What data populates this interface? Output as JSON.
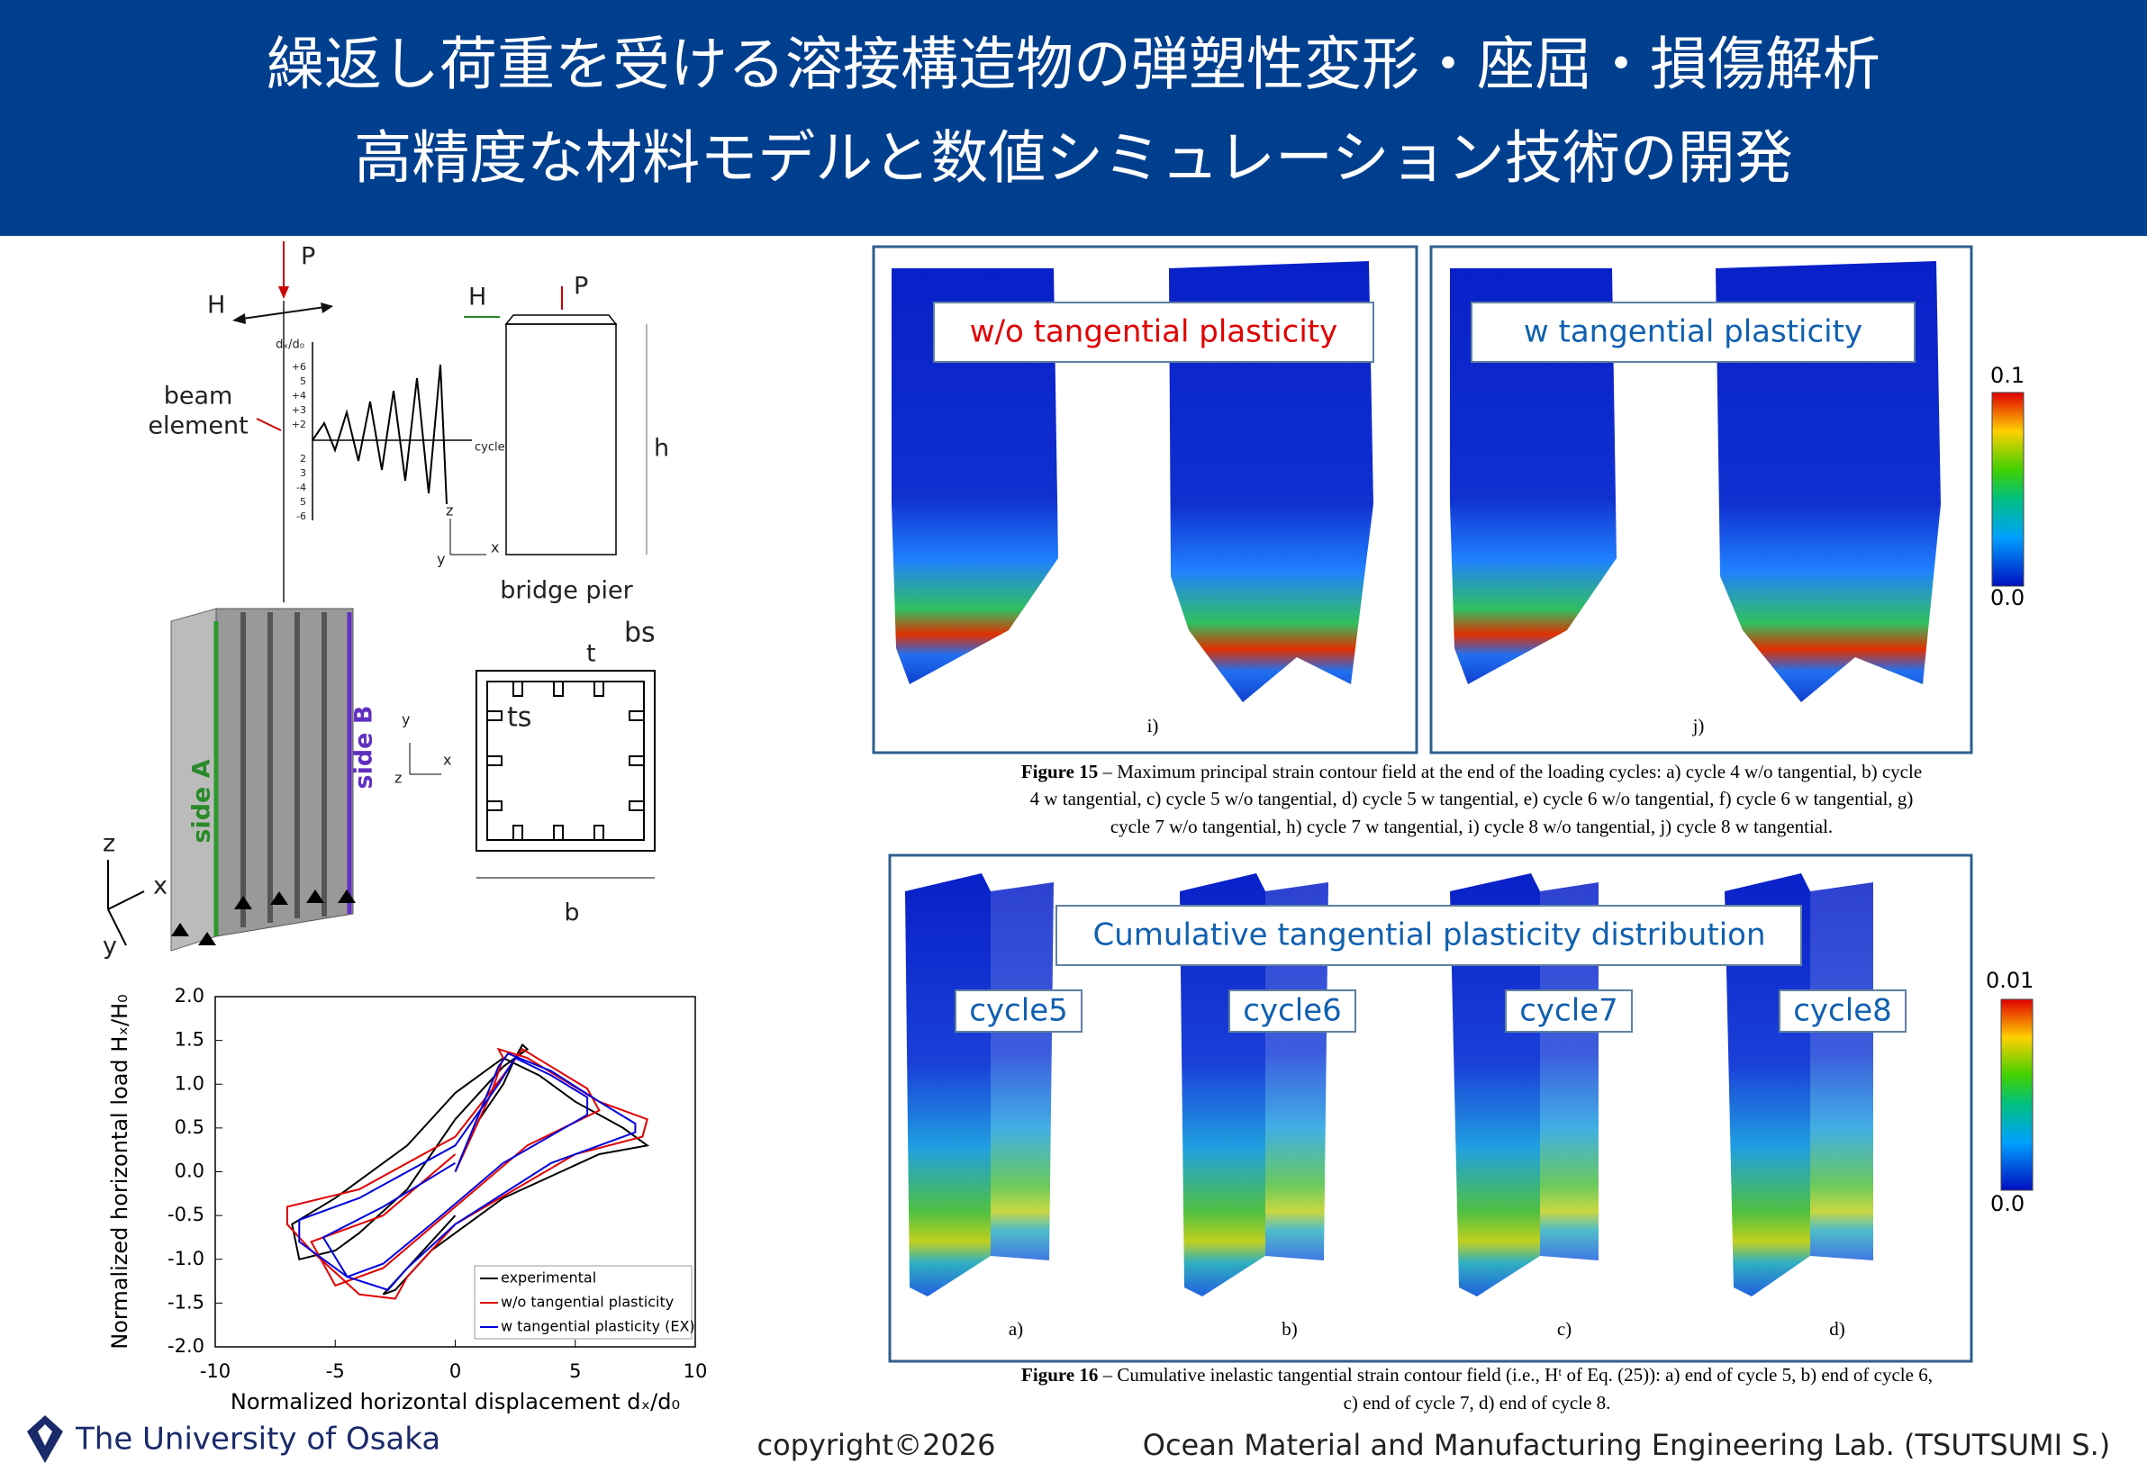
{
  "header": {
    "title_lines": [
      "繰返し荷重を受ける溶接構造物の弾塑性変形・座屈・損傷解析",
      "高精度な材料モデルと数値シミュレーション技術の開発"
    ]
  },
  "diagram": {
    "load_P": "P",
    "load_H": "H",
    "beam_element_lines": [
      "beam",
      "element"
    ],
    "cyclic_axis_label": "dₓ/d₀",
    "cyclic_ticks": [
      "+6",
      "5",
      "+4",
      "+3",
      "+2",
      "2",
      "3",
      "-4",
      "5",
      "-6"
    ],
    "cycle_label": "cycle",
    "pier_H": "H",
    "pier_P": "P",
    "height": "h",
    "bridge_pier": "bridge pier",
    "axis_z": "z",
    "axis_y": "y",
    "axis_x": "x",
    "side_a": "side A",
    "side_b": "side B",
    "section_t": "t",
    "section_bs": "bs",
    "section_ts": "ts",
    "section_b": "b"
  },
  "chart": {
    "type": "line",
    "ylabel": "Normalized horizontal load Hₓ/H₀",
    "xlabel": "Normalized horizontal displacement dₓ/d₀",
    "xlim": [
      -10,
      10
    ],
    "ylim": [
      -2,
      2
    ],
    "xticks": [
      -10,
      -5,
      0,
      5,
      10
    ],
    "yticks": [
      {
        "value": 2,
        "label": "2.0"
      },
      {
        "value": 1.5,
        "label": "1.5"
      },
      {
        "value": 1,
        "label": "1.0"
      },
      {
        "value": 0.5,
        "label": "0.5"
      },
      {
        "value": 0,
        "label": "0.0"
      },
      {
        "value": -0.5,
        "label": "-0.5"
      },
      {
        "value": -1,
        "label": "-1.0"
      },
      {
        "value": -1.5,
        "label": "-1.5"
      },
      {
        "value": -2,
        "label": "-2.0"
      }
    ],
    "series": [
      {
        "name": "experimental",
        "color": "#000000",
        "x": [
          0,
          1,
          2,
          2.5,
          2.8,
          3,
          2,
          0,
          -2,
          -4,
          -5,
          -6.5,
          -6.8,
          -5,
          -2,
          0,
          2,
          3.5,
          5,
          7,
          8,
          6,
          2,
          -1,
          -2.5,
          -3,
          -2,
          0
        ],
        "y": [
          0,
          0.6,
          1,
          1.3,
          1.45,
          1.4,
          1.2,
          0.6,
          -0.2,
          -0.7,
          -0.9,
          -1,
          -0.6,
          -0.3,
          0.3,
          0.9,
          1.3,
          1.1,
          0.8,
          0.5,
          0.3,
          0.2,
          -0.3,
          -0.9,
          -1.35,
          -1.4,
          -1.1,
          -0.5
        ]
      },
      {
        "name": "w/o tangential plasticity",
        "color": "#e00000",
        "x": [
          0,
          1.5,
          2,
          1.8,
          3,
          6,
          8,
          7.8,
          5,
          0,
          -2,
          -2.5,
          -4,
          -6,
          -7,
          -7,
          -4,
          0,
          2,
          2.8,
          4,
          5.5,
          6,
          3,
          0,
          -3,
          -5,
          -6,
          -3,
          0
        ],
        "y": [
          0,
          0.9,
          1.3,
          1.4,
          1.3,
          0.8,
          0.6,
          0.4,
          0.2,
          -0.6,
          -1.2,
          -1.45,
          -1.4,
          -0.9,
          -0.6,
          -0.4,
          -0.2,
          0.4,
          1.1,
          1.4,
          1.2,
          0.95,
          0.7,
          0.3,
          -0.4,
          -1.1,
          -1.3,
          -0.8,
          -0.5,
          0.2
        ]
      },
      {
        "name": "w tangential plasticity (EX)",
        "color": "#0000dd",
        "x": [
          0,
          1.2,
          1.8,
          2.2,
          4,
          6,
          7.5,
          7.5,
          4,
          0,
          -2,
          -2.8,
          -4.5,
          -6.5,
          -6.5,
          -4,
          0,
          1.8,
          2.5,
          4,
          5.5,
          5.5,
          2,
          -1,
          -3,
          -4.5,
          -5.5,
          -3,
          0
        ],
        "y": [
          0,
          0.8,
          1.2,
          1.35,
          1.15,
          0.8,
          0.55,
          0.45,
          0.1,
          -0.6,
          -1.1,
          -1.35,
          -1.2,
          -0.8,
          -0.55,
          -0.3,
          0.3,
          1,
          1.3,
          1.1,
          0.85,
          0.65,
          0.1,
          -0.6,
          -1.05,
          -1.2,
          -0.75,
          -0.4,
          0.1
        ]
      }
    ]
  },
  "figure15": {
    "panel_labels": [
      "w/o tangential plasticity",
      "w tangential plasticity"
    ],
    "subfigure_labels": [
      "i)",
      "j)"
    ],
    "colorbar_labels": [
      "0.1",
      "0.0"
    ],
    "caption_label": "Figure 15",
    "caption_lines": [
      "– Maximum principal strain contour field at the end of the loading cycles: a) cycle 4 w/o tangential, b) cycle",
      "4 w tangential, c) cycle 5 w/o tangential, d) cycle 5 w tangential, e) cycle 6 w/o tangential, f) cycle 6 w tangential, g)",
      "cycle 7 w/o tangential, h) cycle 7 w tangential, i) cycle 8 w/o tangential, j) cycle 8 w tangential."
    ]
  },
  "figure16": {
    "panel_label": "Cumulative tangential plasticity distribution",
    "cycle_labels": [
      "cycle5",
      "cycle6",
      "cycle7",
      "cycle8"
    ],
    "subfigure_labels": [
      "a)",
      "b)",
      "c)",
      "d)"
    ],
    "colorbar_labels": [
      "0.01",
      "0.0"
    ],
    "caption_label": "Figure 16",
    "caption_lines": [
      "– Cumulative inelastic tangential strain contour field (i.e., Hᵗ of Eq. (25)): a) end of cycle 5, b) end of cycle 6,",
      "c) end of cycle 7, d) end of cycle 8."
    ]
  },
  "footer": {
    "university": "The University of Osaka",
    "copyright": "copyright©2026",
    "lab": "Ocean Material and Manufacturing Engineering Lab. (TSUTSUMI S.)"
  }
}
